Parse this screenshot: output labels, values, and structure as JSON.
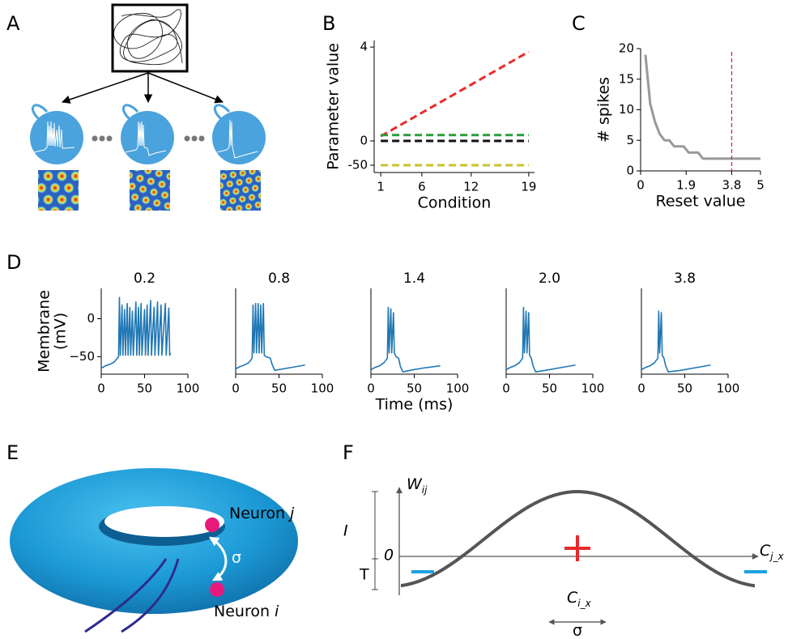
{
  "panels": [
    "A",
    "B",
    "C",
    "D",
    "E",
    "F"
  ],
  "chart_data": [
    {
      "type": "line",
      "ylabel": "Parameter value",
      "xlabel": "Condition",
      "x": [
        1,
        19
      ],
      "xlim": [
        0.2,
        19.7
      ],
      "xticks": [
        1,
        6,
        12,
        19
      ],
      "ylim": [
        -165,
        4.28
      ],
      "yticks": [
        4,
        0,
        -50
      ],
      "yscale": "symlog",
      "series": [
        {
          "color": "#e8292b",
          "dashed": true,
          "values": [
            0.2,
            3.8
          ]
        },
        {
          "color": "#2a9e3a",
          "dashed": true,
          "values": [
            0.25,
            0.25
          ]
        },
        {
          "color": "#111111",
          "dashed": true,
          "values": [
            0,
            0
          ]
        },
        {
          "color": "#c9c42a",
          "dashed": true,
          "values": [
            -50,
            -50
          ]
        }
      ]
    },
    {
      "type": "line",
      "ylabel": "# spikes",
      "xlabel": "Reset value",
      "x": [
        0.2,
        0.4,
        0.6,
        0.8,
        1.0,
        1.2,
        1.4,
        1.6,
        1.8,
        2.0,
        2.2,
        2.4,
        2.6,
        2.8,
        3.0,
        3.2,
        3.4,
        3.6,
        3.8,
        4.0,
        4.2,
        4.4,
        4.6,
        4.8,
        5.0
      ],
      "series": [
        {
          "color": "#999999",
          "values": [
            19,
            11,
            8,
            6,
            5,
            5,
            4,
            4,
            4,
            3,
            3,
            3,
            2,
            2,
            2,
            2,
            2,
            2,
            2,
            2,
            2,
            2,
            2,
            2,
            2
          ]
        }
      ],
      "xlim": [
        0,
        5
      ],
      "xticks": [
        0,
        1.9,
        3.8,
        5
      ],
      "ylim": [
        0,
        20
      ],
      "yticks": [
        0,
        5,
        10,
        15,
        20
      ],
      "vline": {
        "x": 3.8,
        "color": "#e8292b"
      }
    },
    {
      "type": "line",
      "title": "0.2",
      "color": "#1f77b4",
      "ylabel": [
        "Membrane",
        "(mV)"
      ],
      "x": [
        0,
        5,
        10,
        15,
        20,
        21,
        22,
        24,
        25,
        27,
        28,
        30,
        31,
        33,
        34,
        36,
        37,
        40,
        41,
        43,
        44,
        46,
        47,
        50,
        51,
        53,
        54,
        57,
        58,
        61,
        62,
        65,
        66,
        69,
        70,
        74,
        75,
        78,
        79,
        80
      ],
      "values": [
        -65,
        -62,
        -60,
        -57,
        -50,
        28,
        -48,
        18,
        -48,
        12,
        -48,
        20,
        -48,
        15,
        -48,
        10,
        -48,
        22,
        -48,
        15,
        -48,
        20,
        -48,
        12,
        -48,
        18,
        -48,
        24,
        -48,
        15,
        -48,
        22,
        -48,
        18,
        -48,
        20,
        -48,
        14,
        -48,
        -45
      ],
      "xlim": [
        0,
        100
      ],
      "xticks": [
        0,
        50,
        100
      ],
      "ylim": [
        -73,
        40
      ],
      "yticks": [
        0,
        {
          "value": -50,
          "label": "−50"
        }
      ]
    },
    {
      "type": "line",
      "title": "0.8",
      "color": "#1f77b4",
      "x": [
        0,
        5,
        10,
        15,
        19,
        20,
        21,
        23,
        24,
        26,
        27,
        29,
        30,
        32,
        33,
        35,
        40,
        42,
        45,
        50,
        60,
        70,
        80
      ],
      "values": [
        -66,
        -63,
        -61,
        -58,
        -52,
        18,
        -45,
        20,
        -45,
        20,
        -45,
        18,
        -45,
        20,
        -48,
        -50,
        -52,
        -60,
        -68,
        -67,
        -65,
        -63,
        -61
      ],
      "xlim": [
        0,
        100
      ],
      "xticks": [
        0,
        50,
        100
      ],
      "ylim": [
        -73,
        40
      ]
    },
    {
      "type": "line",
      "title": "1.4",
      "color": "#1f77b4",
      "xlabel": "Time (ms)",
      "x": [
        0,
        5,
        10,
        15,
        19,
        20,
        21,
        23,
        24,
        26,
        27,
        29,
        32,
        34,
        37,
        45,
        60,
        80
      ],
      "values": [
        -67,
        -64,
        -62,
        -58,
        -52,
        15,
        -45,
        13,
        -45,
        8,
        -45,
        -50,
        -52,
        -63,
        -70,
        -68,
        -65,
        -62
      ],
      "xlim": [
        0,
        100
      ],
      "xticks": [
        0,
        50,
        100
      ],
      "ylim": [
        -73,
        40
      ]
    },
    {
      "type": "line",
      "title": "2.0",
      "color": "#1f77b4",
      "x": [
        0,
        5,
        10,
        15,
        19,
        20,
        21,
        23,
        24,
        26,
        27,
        29,
        31,
        34,
        45,
        60,
        80
      ],
      "values": [
        -67,
        -64,
        -62,
        -58,
        -52,
        15,
        -45,
        10,
        -45,
        8,
        -48,
        -52,
        -62,
        -70,
        -68,
        -65,
        -61
      ],
      "xlim": [
        0,
        100
      ],
      "xticks": [
        0,
        50,
        100
      ],
      "ylim": [
        -73,
        40
      ]
    },
    {
      "type": "line",
      "title": "3.8",
      "color": "#1f77b4",
      "x": [
        0,
        5,
        10,
        15,
        19,
        20,
        21,
        23,
        24,
        26,
        28,
        31,
        45,
        60,
        80
      ],
      "values": [
        -67,
        -64,
        -62,
        -58,
        -52,
        10,
        -45,
        8,
        -48,
        -52,
        -62,
        -70,
        -68,
        -65,
        -61
      ],
      "xlim": [
        0,
        100
      ],
      "xticks": [
        0,
        50,
        100
      ],
      "ylim": [
        -73,
        40
      ]
    }
  ],
  "diagram_e": {
    "neuron_j": {
      "text": "Neuron",
      "index": "j"
    },
    "neuron_i": {
      "text": "Neuron",
      "index": "i"
    },
    "distance": "σ"
  },
  "diagram_f": {
    "weight": {
      "symbol": "W",
      "index": "ij"
    },
    "amplitude": "I",
    "threshold": "T",
    "origin": "0",
    "axis_label": {
      "symbol": "C",
      "index": "j_x"
    },
    "center": {
      "symbol": "C",
      "index": "i_x"
    },
    "width": "σ"
  }
}
